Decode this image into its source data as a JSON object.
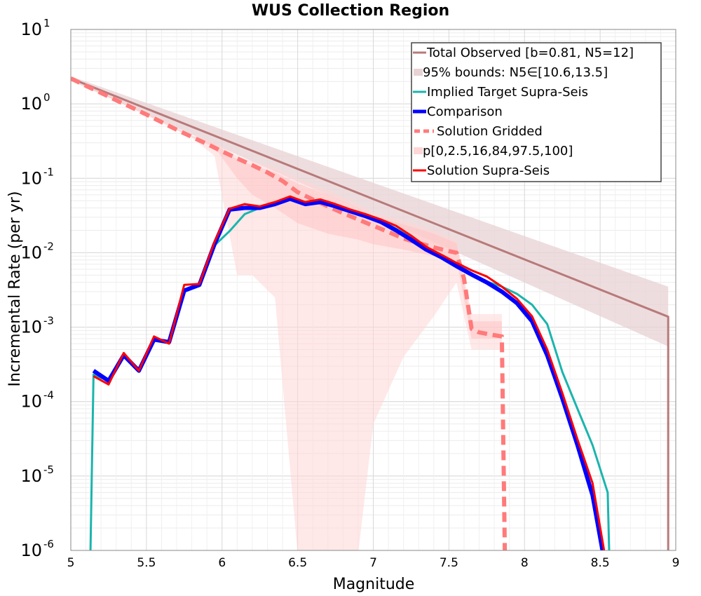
{
  "chart_data": {
    "type": "line",
    "title": "WUS Collection Region",
    "xlabel": "Magnitude",
    "ylabel": "Incremental Rate (per yr)",
    "xlim": [
      5,
      9
    ],
    "ylim_log10": [
      -6,
      1
    ],
    "y_scale": "log",
    "grid": true,
    "legend_position": "top-right",
    "x_ticks": [
      "5",
      "5.5",
      "6",
      "6.5",
      "7",
      "7.5",
      "8",
      "8.5",
      "9"
    ],
    "y_ticks": [
      {
        "base": "10",
        "exp": "1"
      },
      {
        "base": "10",
        "exp": "0"
      },
      {
        "base": "10",
        "exp": "-1"
      },
      {
        "base": "10",
        "exp": "-2"
      },
      {
        "base": "10",
        "exp": "-3"
      },
      {
        "base": "10",
        "exp": "-4"
      },
      {
        "base": "10",
        "exp": "-5"
      },
      {
        "base": "10",
        "exp": "-6"
      }
    ],
    "colors": {
      "total_observed": "#b87a7a",
      "bounds_fill": "#e8d2d4",
      "implied_target": "#1ab5ad",
      "comparison": "#0000ff",
      "solution_gridded": "#ff7a7a",
      "percentile_fill": "#ffd6d6",
      "solution_supra": "#ff0000"
    },
    "series": [
      {
        "key": "total_observed",
        "name": "Total Observed [b=0.81, N5=12]",
        "x": [
          5.0,
          8.95,
          8.95
        ],
        "y": [
          2.2,
          0.00138,
          1e-07
        ]
      },
      {
        "key": "bounds",
        "name": "95% bounds: N5∈[10.6,13.5]",
        "x": [
          5.0,
          8.95
        ],
        "lower": [
          2.05,
          0.00055
        ],
        "upper": [
          2.35,
          0.0035
        ]
      },
      {
        "key": "implied_target",
        "name": "Implied Target Supra-Seis",
        "x": [
          5.13,
          5.15,
          5.25,
          5.35,
          5.45,
          5.55,
          5.65,
          5.75,
          5.85,
          5.95,
          6.05,
          6.15,
          6.25,
          6.35,
          6.45,
          6.55,
          6.65,
          6.75,
          6.85,
          6.95,
          7.05,
          7.15,
          7.25,
          7.35,
          7.45,
          7.55,
          7.65,
          7.75,
          7.85,
          7.95,
          8.05,
          8.15,
          8.25,
          8.35,
          8.45,
          8.55,
          8.56
        ],
        "y": [
          1e-07,
          0.00023,
          0.00019,
          0.00042,
          0.00026,
          0.00068,
          0.00063,
          0.0031,
          0.0037,
          0.0125,
          0.0195,
          0.033,
          0.04,
          0.045,
          0.055,
          0.046,
          0.05,
          0.044,
          0.037,
          0.032,
          0.027,
          0.021,
          0.016,
          0.012,
          0.0092,
          0.0069,
          0.0053,
          0.0041,
          0.0035,
          0.0028,
          0.002,
          0.0011,
          0.00025,
          8e-05,
          2.6e-05,
          6e-06,
          1e-07
        ]
      },
      {
        "key": "comparison",
        "name": "Comparison",
        "x": [
          5.15,
          5.25,
          5.35,
          5.45,
          5.55,
          5.65,
          5.75,
          5.85,
          5.95,
          6.05,
          6.15,
          6.25,
          6.35,
          6.45,
          6.55,
          6.65,
          6.75,
          6.85,
          6.95,
          7.05,
          7.15,
          7.25,
          7.35,
          7.45,
          7.55,
          7.65,
          7.75,
          7.85,
          7.95,
          8.05,
          8.15,
          8.25,
          8.35,
          8.45,
          8.52
        ],
        "y": [
          0.00026,
          0.00019,
          0.00042,
          0.00026,
          0.00068,
          0.00063,
          0.0031,
          0.0037,
          0.013,
          0.038,
          0.04,
          0.04,
          0.045,
          0.053,
          0.045,
          0.048,
          0.042,
          0.036,
          0.031,
          0.026,
          0.02,
          0.015,
          0.011,
          0.0087,
          0.0066,
          0.0051,
          0.004,
          0.003,
          0.0021,
          0.0012,
          0.00042,
          0.00011,
          2.6e-05,
          5.5e-06,
          1e-07
        ]
      },
      {
        "key": "solution_gridded",
        "name": "Solution Gridded",
        "x": [
          5.0,
          5.1,
          5.2,
          5.3,
          5.4,
          5.5,
          5.6,
          5.7,
          5.8,
          5.9,
          6.0,
          6.1,
          6.2,
          6.3,
          6.4,
          6.5,
          6.6,
          6.7,
          6.8,
          6.9,
          7.0,
          7.1,
          7.2,
          7.3,
          7.4,
          7.5,
          7.55,
          7.6,
          7.65,
          7.7,
          7.8,
          7.85,
          7.87
        ],
        "y": [
          2.2,
          1.75,
          1.4,
          1.12,
          0.9,
          0.72,
          0.57,
          0.45,
          0.36,
          0.29,
          0.23,
          0.185,
          0.15,
          0.12,
          0.092,
          0.065,
          0.052,
          0.042,
          0.034,
          0.028,
          0.023,
          0.019,
          0.0155,
          0.0135,
          0.0118,
          0.0105,
          0.01,
          0.0045,
          0.00095,
          0.00085,
          0.00078,
          0.00075,
          1e-07
        ]
      },
      {
        "key": "percentiles",
        "name": "p[0,2.5,16,84,97.5,100]",
        "x": [
          5.0,
          5.5,
          5.8,
          5.95,
          6.1,
          6.2,
          6.35,
          6.5,
          6.7,
          6.9,
          7.0,
          7.2,
          7.4,
          7.55,
          7.65,
          7.85
        ],
        "outer_lower": [
          2.1,
          0.7,
          0.35,
          0.2,
          0.005,
          0.005,
          0.0025,
          1e-07,
          1e-07,
          1e-07,
          5e-05,
          0.0004,
          0.0014,
          0.004,
          0.0005,
          0.0005
        ],
        "outer_upper": [
          2.3,
          0.75,
          0.38,
          0.3,
          0.2,
          0.17,
          0.14,
          0.1,
          0.07,
          0.045,
          0.035,
          0.027,
          0.02,
          0.015,
          0.0015,
          0.0015
        ],
        "inner_lower": [
          2.15,
          0.72,
          0.36,
          0.26,
          0.1,
          0.06,
          0.04,
          0.025,
          0.018,
          0.015,
          0.013,
          0.011,
          0.009,
          0.008,
          0.0007,
          0.0007
        ],
        "inner_upper": [
          2.25,
          0.74,
          0.37,
          0.29,
          0.18,
          0.15,
          0.12,
          0.085,
          0.06,
          0.04,
          0.031,
          0.024,
          0.018,
          0.0135,
          0.0012,
          0.0012
        ]
      },
      {
        "key": "solution_supra",
        "name": "Solution Supra-Seis",
        "x": [
          5.15,
          5.25,
          5.35,
          5.45,
          5.55,
          5.65,
          5.75,
          5.85,
          5.95,
          6.05,
          6.15,
          6.25,
          6.35,
          6.45,
          6.55,
          6.65,
          6.75,
          6.85,
          6.95,
          7.05,
          7.15,
          7.25,
          7.35,
          7.45,
          7.55,
          7.65,
          7.75,
          7.85,
          7.95,
          8.05,
          8.15,
          8.25,
          8.35,
          8.45,
          8.53
        ],
        "y": [
          0.00022,
          0.00017,
          0.00045,
          0.00026,
          0.00075,
          0.0006,
          0.0037,
          0.0038,
          0.014,
          0.039,
          0.045,
          0.042,
          0.048,
          0.057,
          0.048,
          0.052,
          0.045,
          0.038,
          0.033,
          0.028,
          0.023,
          0.017,
          0.012,
          0.0094,
          0.0073,
          0.0058,
          0.0048,
          0.0035,
          0.0024,
          0.0014,
          0.0005,
          0.00013,
          3.1e-05,
          8e-06,
          1e-07
        ]
      }
    ]
  }
}
